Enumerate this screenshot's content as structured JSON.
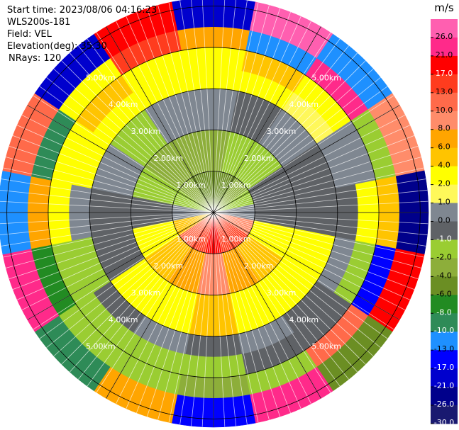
{
  "chart_data": {
    "type": "ppi",
    "header": [
      "Start time: 2023/08/06 04:16:23",
      "WLS200s-181",
      "Field: VEL",
      "Elevation(deg): 35.30",
      "NRays: 120"
    ],
    "colorbar": {
      "unit": "m/s",
      "clim": [
        -30,
        30
      ],
      "ticks": [
        {
          "value": 26,
          "label": "26.0"
        },
        {
          "value": 21,
          "label": "21.0"
        },
        {
          "value": 17,
          "label": "17.0"
        },
        {
          "value": 13,
          "label": "13.0"
        },
        {
          "value": 10,
          "label": "10.0"
        },
        {
          "value": 8,
          "label": "8.0"
        },
        {
          "value": 6,
          "label": "6.0"
        },
        {
          "value": 4,
          "label": "4.0"
        },
        {
          "value": 2,
          "label": "2.0"
        },
        {
          "value": 1,
          "label": "1.0"
        },
        {
          "value": 0,
          "label": "0.0"
        },
        {
          "value": -1,
          "label": "-1.0"
        },
        {
          "value": -2,
          "label": "-2.0"
        },
        {
          "value": -4,
          "label": "-4.0"
        },
        {
          "value": -6,
          "label": "-6.0"
        },
        {
          "value": -8,
          "label": "-8.0"
        },
        {
          "value": -10,
          "label": "-10.0"
        },
        {
          "value": -13,
          "label": "-13.0"
        },
        {
          "value": -17,
          "label": "-17.0"
        },
        {
          "value": -21,
          "label": "-21.0"
        },
        {
          "value": -26,
          "label": "-26.0"
        },
        {
          "value": -30,
          "label": "-30.0"
        }
      ],
      "colors": [
        "#ff5fb0",
        "#ff2a8a",
        "#ff0000",
        "#ff3c1e",
        "#ff6a4a",
        "#ff8c6a",
        "#ffa500",
        "#ffc400",
        "#ffff00",
        "#fff85a",
        "#7f8791",
        "#5f6266",
        "#9acd32",
        "#8dae3a",
        "#6b8e23",
        "#228b22",
        "#2e8b57",
        "#1e90ff",
        "#0000ff",
        "#0000cd",
        "#00008b",
        "#191970"
      ]
    },
    "range_max_km": 5.2,
    "range_rings": [
      {
        "value": 1,
        "label": "1.00km"
      },
      {
        "value": 2,
        "label": "2.00km"
      },
      {
        "value": 3,
        "label": "3.00km"
      },
      {
        "value": 4,
        "label": "4.00km"
      },
      {
        "value": 5,
        "label": "5.00km"
      }
    ],
    "range_bins_km": [
      0,
      1,
      2,
      3,
      3.5,
      4,
      4.5,
      5.2
    ],
    "azimuth_step_deg": 22.5,
    "values": [
      [
        -6,
        -4,
        0.5,
        2,
        2,
        6,
        -21
      ],
      [
        -6,
        -2,
        -0.5,
        2,
        4,
        -13,
        26
      ],
      [
        -4,
        -2,
        0.5,
        1.5,
        2,
        21,
        -13
      ],
      [
        -2,
        -0.5,
        -0.5,
        0.5,
        0.5,
        -2,
        8
      ],
      [
        0.5,
        -0.5,
        -0.5,
        -0.5,
        2,
        4,
        -26
      ],
      [
        8,
        2,
        2,
        0.5,
        -2,
        -17,
        17
      ],
      [
        13,
        4,
        2,
        -0.5,
        -0.5,
        10,
        -6
      ],
      [
        13,
        6,
        2,
        0.5,
        -0.5,
        -2,
        21
      ],
      [
        17,
        8,
        4,
        -0.5,
        -2,
        -4,
        -17
      ],
      [
        13,
        6,
        2,
        0.5,
        -2,
        -2,
        6
      ],
      [
        10,
        4,
        2,
        -0.5,
        -2,
        -1.5,
        -10
      ],
      [
        4,
        2,
        -0.5,
        -2,
        -2,
        -8,
        24
      ],
      [
        0.5,
        -0.5,
        -0.5,
        0.5,
        2,
        6,
        -13
      ],
      [
        -2,
        -2,
        0.5,
        2,
        2,
        -10,
        10
      ],
      [
        -4,
        -4,
        -2,
        2,
        4,
        2,
        -21
      ],
      [
        -6,
        -4,
        0.5,
        2,
        2,
        13,
        17
      ]
    ]
  }
}
